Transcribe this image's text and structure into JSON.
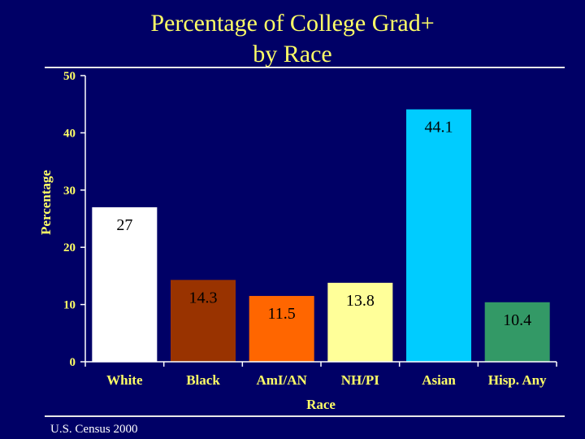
{
  "slide": {
    "source": "U.S. Census 2000"
  },
  "chart_data": {
    "type": "bar",
    "title_lines": [
      "Percentage of College Grad+",
      "by Race"
    ],
    "categories": [
      "White",
      "Black",
      "AmI/AN",
      "NH/PI",
      "Asian",
      "Hisp. Any"
    ],
    "values": [
      27,
      14.3,
      11.5,
      13.8,
      44.1,
      10.4
    ],
    "data_labels": [
      "27",
      "14.3",
      "11.5",
      "13.8",
      "44.1",
      "10.4"
    ],
    "bar_colors": [
      "#ffffff",
      "#993300",
      "#ff6600",
      "#ffff99",
      "#00ccff",
      "#339966"
    ],
    "xlabel": "Race",
    "ylabel": "Percentage",
    "ylim": [
      0,
      50
    ],
    "yticks": [
      "0",
      "10",
      "20",
      "30",
      "40",
      "50"
    ],
    "label_position": "inside-top",
    "axis_color": "#ffffff"
  }
}
